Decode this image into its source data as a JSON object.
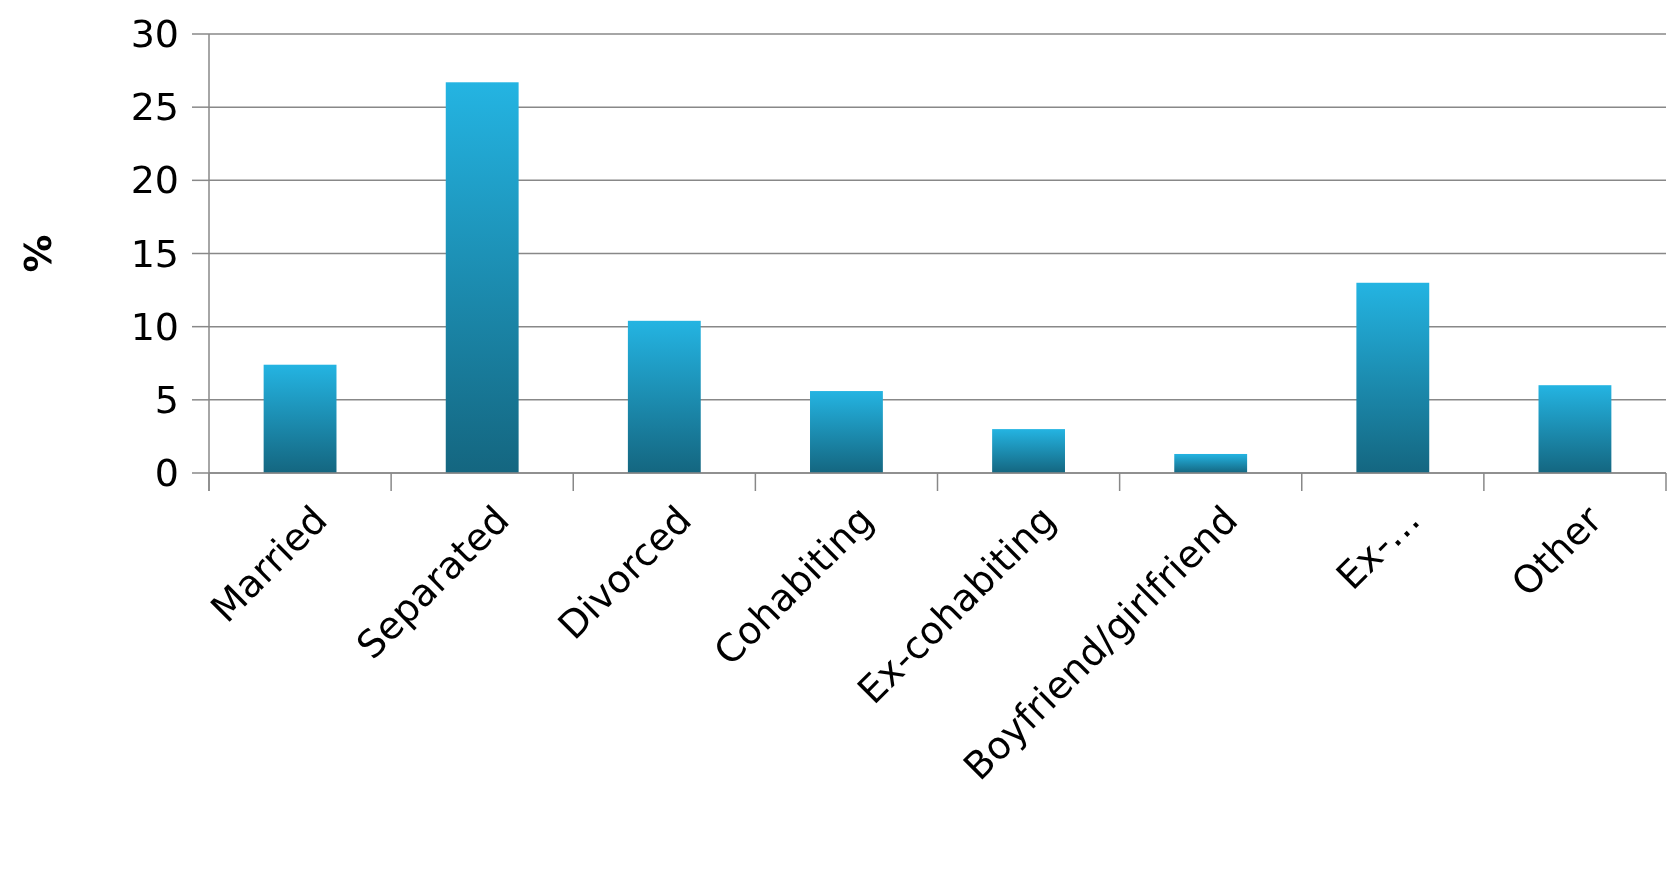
{
  "chart_data": {
    "type": "bar",
    "ylabel": "%",
    "categories": [
      "Married",
      "Separated",
      "Divorced",
      "Cohabiting",
      "Ex-cohabiting",
      "Boyfriend/girlfriend",
      "Ex-…",
      "Other"
    ],
    "values": [
      7.4,
      26.7,
      10.4,
      5.6,
      3.0,
      1.3,
      13.0,
      6.0
    ],
    "color": "#1f9cc4",
    "ylim": [
      0,
      30
    ],
    "yticks": [
      0,
      5,
      10,
      15,
      20,
      25,
      30
    ],
    "grid": "y"
  }
}
